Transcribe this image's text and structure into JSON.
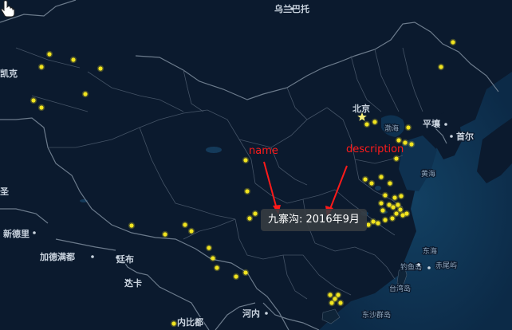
{
  "labels": {
    "ulaanbaatar": "乌兰巴托",
    "kaike": "凯克",
    "beijing": "北京",
    "bohai": "渤海",
    "pyongyang": "平壤",
    "seoul": "首尔",
    "yellow_sea": "黄海",
    "east_sea": "东海",
    "new_delhi": "新德里",
    "kathmandu": "加德满都",
    "thimphu": "廷布",
    "dhaka": "达卡",
    "hanoi": "河内",
    "naypyidaw": "内比都",
    "diaoyu": "钓鱼岛",
    "chiwei": "赤尾屿",
    "taiwan_island": "台湾岛",
    "dongsha": "东沙群岛",
    "left_edge": "圣"
  },
  "annotations": {
    "name": "name",
    "description": "description"
  },
  "tooltip": {
    "name": "九寨沟",
    "description": "2016年9月",
    "text": "九寨沟: 2016年9月"
  },
  "colors": {
    "land": "#0b1a2e",
    "sea": "#0e2f4f",
    "border": "#5a6a7c",
    "scatter_point": "#f2e51f",
    "annotation": "#ff1a1a",
    "tooltip_bg": "#3a3f45"
  },
  "icons": {
    "capital": "star-icon",
    "cursor": "hand-pointer-icon"
  }
}
